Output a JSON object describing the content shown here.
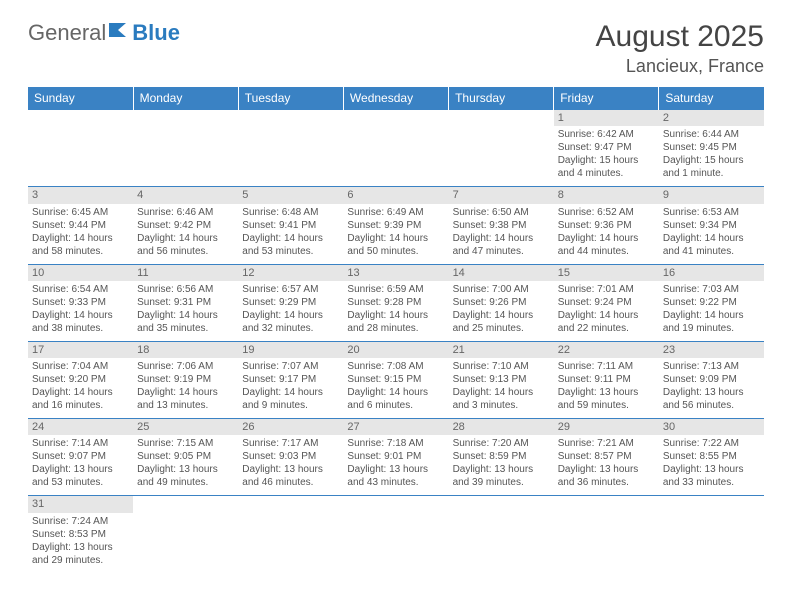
{
  "logo": {
    "text1": "General",
    "text2": "Blue"
  },
  "header": {
    "month": "August 2025",
    "location": "Lancieux, France"
  },
  "colors": {
    "header_bg": "#3a82c4",
    "header_text": "#ffffff",
    "daynum_bg": "#e6e6e6",
    "text": "#555555",
    "rule": "#3a82c4"
  },
  "day_headers": [
    "Sunday",
    "Monday",
    "Tuesday",
    "Wednesday",
    "Thursday",
    "Friday",
    "Saturday"
  ],
  "weeks": [
    [
      {
        "n": "",
        "lines": []
      },
      {
        "n": "",
        "lines": []
      },
      {
        "n": "",
        "lines": []
      },
      {
        "n": "",
        "lines": []
      },
      {
        "n": "",
        "lines": []
      },
      {
        "n": "1",
        "lines": [
          "Sunrise: 6:42 AM",
          "Sunset: 9:47 PM",
          "Daylight: 15 hours",
          "and 4 minutes."
        ]
      },
      {
        "n": "2",
        "lines": [
          "Sunrise: 6:44 AM",
          "Sunset: 9:45 PM",
          "Daylight: 15 hours",
          "and 1 minute."
        ]
      }
    ],
    [
      {
        "n": "3",
        "lines": [
          "Sunrise: 6:45 AM",
          "Sunset: 9:44 PM",
          "Daylight: 14 hours",
          "and 58 minutes."
        ]
      },
      {
        "n": "4",
        "lines": [
          "Sunrise: 6:46 AM",
          "Sunset: 9:42 PM",
          "Daylight: 14 hours",
          "and 56 minutes."
        ]
      },
      {
        "n": "5",
        "lines": [
          "Sunrise: 6:48 AM",
          "Sunset: 9:41 PM",
          "Daylight: 14 hours",
          "and 53 minutes."
        ]
      },
      {
        "n": "6",
        "lines": [
          "Sunrise: 6:49 AM",
          "Sunset: 9:39 PM",
          "Daylight: 14 hours",
          "and 50 minutes."
        ]
      },
      {
        "n": "7",
        "lines": [
          "Sunrise: 6:50 AM",
          "Sunset: 9:38 PM",
          "Daylight: 14 hours",
          "and 47 minutes."
        ]
      },
      {
        "n": "8",
        "lines": [
          "Sunrise: 6:52 AM",
          "Sunset: 9:36 PM",
          "Daylight: 14 hours",
          "and 44 minutes."
        ]
      },
      {
        "n": "9",
        "lines": [
          "Sunrise: 6:53 AM",
          "Sunset: 9:34 PM",
          "Daylight: 14 hours",
          "and 41 minutes."
        ]
      }
    ],
    [
      {
        "n": "10",
        "lines": [
          "Sunrise: 6:54 AM",
          "Sunset: 9:33 PM",
          "Daylight: 14 hours",
          "and 38 minutes."
        ]
      },
      {
        "n": "11",
        "lines": [
          "Sunrise: 6:56 AM",
          "Sunset: 9:31 PM",
          "Daylight: 14 hours",
          "and 35 minutes."
        ]
      },
      {
        "n": "12",
        "lines": [
          "Sunrise: 6:57 AM",
          "Sunset: 9:29 PM",
          "Daylight: 14 hours",
          "and 32 minutes."
        ]
      },
      {
        "n": "13",
        "lines": [
          "Sunrise: 6:59 AM",
          "Sunset: 9:28 PM",
          "Daylight: 14 hours",
          "and 28 minutes."
        ]
      },
      {
        "n": "14",
        "lines": [
          "Sunrise: 7:00 AM",
          "Sunset: 9:26 PM",
          "Daylight: 14 hours",
          "and 25 minutes."
        ]
      },
      {
        "n": "15",
        "lines": [
          "Sunrise: 7:01 AM",
          "Sunset: 9:24 PM",
          "Daylight: 14 hours",
          "and 22 minutes."
        ]
      },
      {
        "n": "16",
        "lines": [
          "Sunrise: 7:03 AM",
          "Sunset: 9:22 PM",
          "Daylight: 14 hours",
          "and 19 minutes."
        ]
      }
    ],
    [
      {
        "n": "17",
        "lines": [
          "Sunrise: 7:04 AM",
          "Sunset: 9:20 PM",
          "Daylight: 14 hours",
          "and 16 minutes."
        ]
      },
      {
        "n": "18",
        "lines": [
          "Sunrise: 7:06 AM",
          "Sunset: 9:19 PM",
          "Daylight: 14 hours",
          "and 13 minutes."
        ]
      },
      {
        "n": "19",
        "lines": [
          "Sunrise: 7:07 AM",
          "Sunset: 9:17 PM",
          "Daylight: 14 hours",
          "and 9 minutes."
        ]
      },
      {
        "n": "20",
        "lines": [
          "Sunrise: 7:08 AM",
          "Sunset: 9:15 PM",
          "Daylight: 14 hours",
          "and 6 minutes."
        ]
      },
      {
        "n": "21",
        "lines": [
          "Sunrise: 7:10 AM",
          "Sunset: 9:13 PM",
          "Daylight: 14 hours",
          "and 3 minutes."
        ]
      },
      {
        "n": "22",
        "lines": [
          "Sunrise: 7:11 AM",
          "Sunset: 9:11 PM",
          "Daylight: 13 hours",
          "and 59 minutes."
        ]
      },
      {
        "n": "23",
        "lines": [
          "Sunrise: 7:13 AM",
          "Sunset: 9:09 PM",
          "Daylight: 13 hours",
          "and 56 minutes."
        ]
      }
    ],
    [
      {
        "n": "24",
        "lines": [
          "Sunrise: 7:14 AM",
          "Sunset: 9:07 PM",
          "Daylight: 13 hours",
          "and 53 minutes."
        ]
      },
      {
        "n": "25",
        "lines": [
          "Sunrise: 7:15 AM",
          "Sunset: 9:05 PM",
          "Daylight: 13 hours",
          "and 49 minutes."
        ]
      },
      {
        "n": "26",
        "lines": [
          "Sunrise: 7:17 AM",
          "Sunset: 9:03 PM",
          "Daylight: 13 hours",
          "and 46 minutes."
        ]
      },
      {
        "n": "27",
        "lines": [
          "Sunrise: 7:18 AM",
          "Sunset: 9:01 PM",
          "Daylight: 13 hours",
          "and 43 minutes."
        ]
      },
      {
        "n": "28",
        "lines": [
          "Sunrise: 7:20 AM",
          "Sunset: 8:59 PM",
          "Daylight: 13 hours",
          "and 39 minutes."
        ]
      },
      {
        "n": "29",
        "lines": [
          "Sunrise: 7:21 AM",
          "Sunset: 8:57 PM",
          "Daylight: 13 hours",
          "and 36 minutes."
        ]
      },
      {
        "n": "30",
        "lines": [
          "Sunrise: 7:22 AM",
          "Sunset: 8:55 PM",
          "Daylight: 13 hours",
          "and 33 minutes."
        ]
      }
    ],
    [
      {
        "n": "31",
        "lines": [
          "Sunrise: 7:24 AM",
          "Sunset: 8:53 PM",
          "Daylight: 13 hours",
          "and 29 minutes."
        ]
      },
      {
        "n": "",
        "lines": []
      },
      {
        "n": "",
        "lines": []
      },
      {
        "n": "",
        "lines": []
      },
      {
        "n": "",
        "lines": []
      },
      {
        "n": "",
        "lines": []
      },
      {
        "n": "",
        "lines": []
      }
    ]
  ]
}
